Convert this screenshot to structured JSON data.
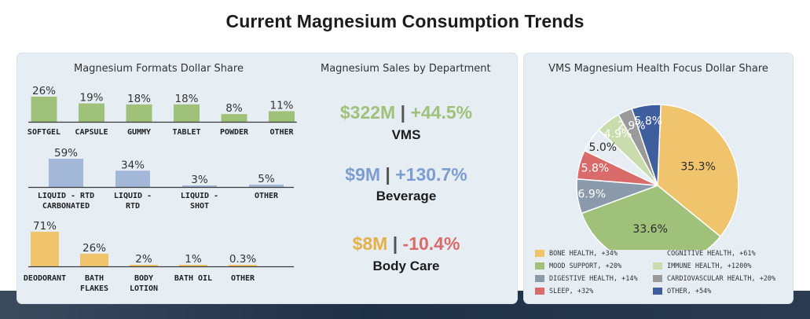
{
  "title": "Current Magnesium Consumption Trends",
  "formats_title": "Magnesium Formats Dollar Share",
  "sales_title": "Magnesium Sales by Department",
  "pie_title": "VMS Magnesium Health Focus Dollar Share",
  "departments": [
    {
      "amount": "$322M",
      "sep": "|",
      "change": "+44.5%",
      "name": "VMS",
      "amount_color": "#9fc17a",
      "change_color": "#9fc17a"
    },
    {
      "amount": "$9M",
      "sep": "|",
      "change": "+130.7%",
      "name": "Beverage",
      "amount_color": "#7d9ccf",
      "change_color": "#7d9ccf"
    },
    {
      "amount": "$8M",
      "sep": "|",
      "change": "-10.4%",
      "name": "Body Care",
      "amount_color": "#e4b04a",
      "change_color": "#d96b6b"
    }
  ],
  "chart_data": [
    {
      "type": "bar",
      "color": "#9fc17a",
      "categories": [
        [
          "SOFTGEL"
        ],
        [
          "CAPSULE"
        ],
        [
          "GUMMY"
        ],
        [
          "TABLET"
        ],
        [
          "POWDER"
        ],
        [
          "OTHER"
        ]
      ],
      "values": [
        26,
        19,
        18,
        18,
        8,
        11
      ],
      "labels": [
        "26%",
        "19%",
        "18%",
        "18%",
        "8%",
        "11%"
      ]
    },
    {
      "type": "bar",
      "color": "#a3b7d9",
      "categories": [
        [
          "LIQUID - RTD",
          "CARBONATED"
        ],
        [
          "LIQUID -",
          "RTD"
        ],
        [
          "LIQUID -",
          "SHOT"
        ],
        [
          "OTHER"
        ]
      ],
      "values": [
        59,
        34,
        3,
        5
      ],
      "labels": [
        "59%",
        "34%",
        "3%",
        "5%"
      ]
    },
    {
      "type": "bar",
      "color": "#efc46d",
      "categories": [
        [
          "DEODORANT"
        ],
        [
          "BATH",
          "FLAKES"
        ],
        [
          "BODY",
          "LOTION"
        ],
        [
          "BATH OIL"
        ],
        [
          "OTHER"
        ]
      ],
      "values": [
        71,
        26,
        2,
        1,
        0.3
      ],
      "labels": [
        "71%",
        "26%",
        "2%",
        "1%",
        "0.3%"
      ]
    },
    {
      "type": "pie",
      "slices": [
        {
          "label": "35.3%",
          "value": 35.3,
          "color": "#efc46d",
          "legend": "BONE HEALTH, +34%",
          "text_color": "#2a2a2a"
        },
        {
          "label": "33.6%",
          "value": 33.6,
          "color": "#9fc17a",
          "legend": "MOOD SUPPORT, +20%",
          "text_color": "#2a2a2a"
        },
        {
          "label": "6.9%",
          "value": 6.9,
          "color": "#8a9aab",
          "legend": "DIGESTIVE HEALTH, +14%",
          "text_color": "#ffffff"
        },
        {
          "label": "5.8%",
          "value": 5.8,
          "color": "#d96b6b",
          "legend": "SLEEP, +32%",
          "text_color": "#ffffff"
        },
        {
          "label": "5.0%",
          "value": 5.0,
          "color": "#e8ecf3",
          "legend": "COGNITIVE HEALTH, +61%",
          "text_color": "#2a2a2a"
        },
        {
          "label": "4.9%",
          "value": 4.9,
          "color": "#c9dcae",
          "legend": "IMMUNE HEALTH, +1200%",
          "text_color": "#ffffff"
        },
        {
          "label": "2.9%",
          "value": 2.9,
          "color": "#9a9a9a",
          "legend": "CARDIOVASCULAR HEALTH, +20%",
          "text_color": "#ffffff"
        },
        {
          "label": "5.8%",
          "value": 5.8,
          "color": "#3f5e9e",
          "legend": "OTHER, +54%",
          "text_color": "#ffffff"
        }
      ]
    }
  ]
}
